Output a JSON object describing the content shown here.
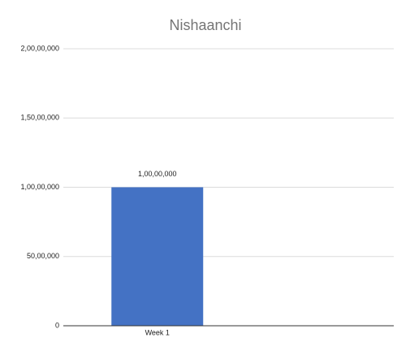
{
  "chart_data": {
    "type": "bar",
    "title": "Nishaanchi",
    "categories": [
      "Week 1",
      null
    ],
    "values": [
      10000000,
      null
    ],
    "value_labels": [
      "1,00,00,000",
      null
    ],
    "color": "#4472c4",
    "ylim": [
      0,
      20000000
    ],
    "yticks": [
      0,
      {
        "value": 5000000,
        "label": "50,00,000"
      },
      {
        "value": 10000000,
        "label": "1,00,00,000"
      },
      {
        "value": 15000000,
        "label": "1,50,00,000"
      },
      {
        "value": 20000000,
        "label": "2,00,00,000"
      }
    ],
    "grid": true
  }
}
